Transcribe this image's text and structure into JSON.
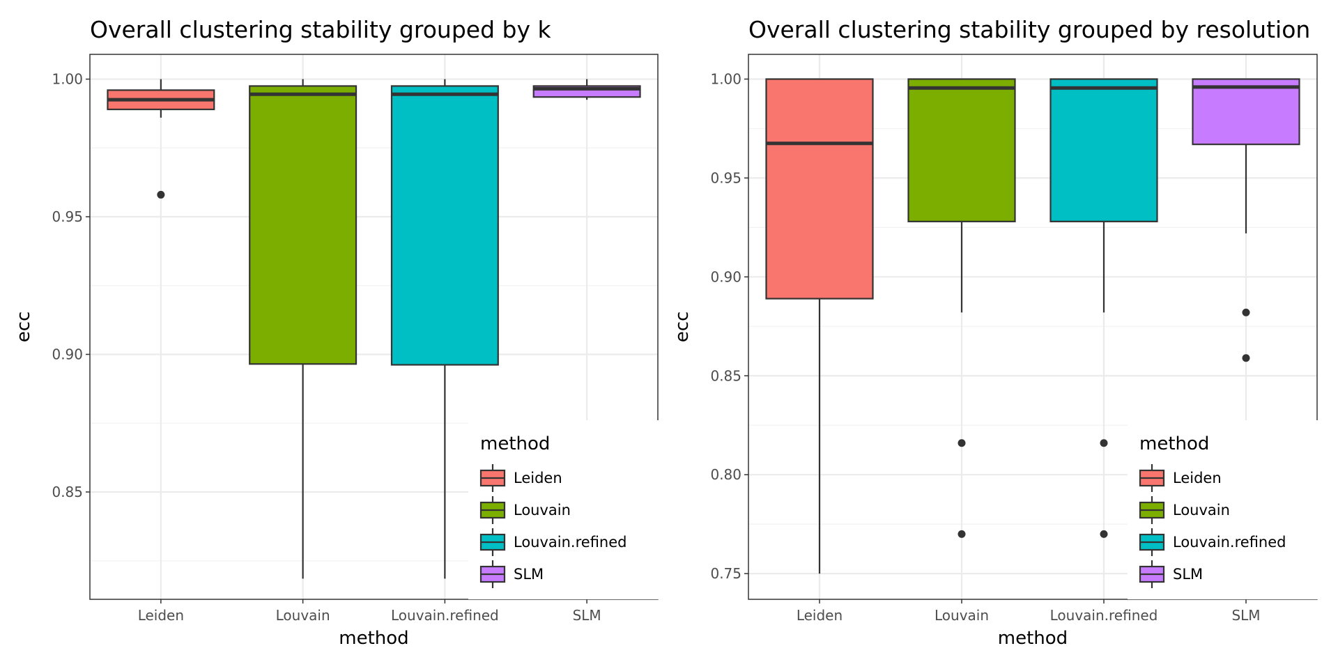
{
  "chart_data": [
    {
      "type": "box",
      "title": "Overall clustering stability grouped by k",
      "xlabel": "method",
      "ylabel": "ecc",
      "categories": [
        "Leiden",
        "Louvain",
        "Louvain.refined",
        "SLM"
      ],
      "ylim": [
        0.811,
        1.009
      ],
      "yticks": [
        0.85,
        0.9,
        0.95,
        1.0
      ],
      "ytick_labels": [
        "0.85",
        "0.90",
        "0.95",
        "1.00"
      ],
      "grid": true,
      "colors": [
        "#F8766D",
        "#7CAE00",
        "#00BFC4",
        "#C77CFF"
      ],
      "boxes": [
        {
          "name": "Leiden",
          "lower_whisker": 0.986,
          "q1": 0.989,
          "median": 0.9925,
          "q3": 0.996,
          "upper_whisker": 1.0,
          "outliers": [
            0.958
          ]
        },
        {
          "name": "Louvain",
          "lower_whisker": 0.8185,
          "q1": 0.8965,
          "median": 0.9945,
          "q3": 0.9975,
          "upper_whisker": 1.0,
          "outliers": []
        },
        {
          "name": "Louvain.refined",
          "lower_whisker": 0.8185,
          "q1": 0.8962,
          "median": 0.9945,
          "q3": 0.9975,
          "upper_whisker": 1.0,
          "outliers": []
        },
        {
          "name": "SLM",
          "lower_whisker": 0.9925,
          "q1": 0.9935,
          "median": 0.9965,
          "q3": 0.9975,
          "upper_whisker": 1.0,
          "outliers": []
        }
      ],
      "legend": {
        "title": "method",
        "position": "bottom-right",
        "entries": [
          "Leiden",
          "Louvain",
          "Louvain.refined",
          "SLM"
        ]
      }
    },
    {
      "type": "box",
      "title": "Overall clustering stability grouped by resolution",
      "xlabel": "method",
      "ylabel": "ecc",
      "categories": [
        "Leiden",
        "Louvain",
        "Louvain.refined",
        "SLM"
      ],
      "ylim": [
        0.737,
        1.0125
      ],
      "yticks": [
        0.75,
        0.8,
        0.85,
        0.9,
        0.95,
        1.0
      ],
      "ytick_labels": [
        "0.75",
        "0.80",
        "0.85",
        "0.90",
        "0.95",
        "1.00"
      ],
      "grid": true,
      "colors": [
        "#F8766D",
        "#7CAE00",
        "#00BFC4",
        "#C77CFF"
      ],
      "boxes": [
        {
          "name": "Leiden",
          "lower_whisker": 0.75,
          "q1": 0.889,
          "median": 0.9675,
          "q3": 1.0,
          "upper_whisker": 1.0,
          "outliers": []
        },
        {
          "name": "Louvain",
          "lower_whisker": 0.882,
          "q1": 0.928,
          "median": 0.9955,
          "q3": 1.0,
          "upper_whisker": 1.0,
          "outliers": [
            0.816,
            0.77
          ]
        },
        {
          "name": "Louvain.refined",
          "lower_whisker": 0.882,
          "q1": 0.928,
          "median": 0.9955,
          "q3": 1.0,
          "upper_whisker": 1.0,
          "outliers": [
            0.816,
            0.77
          ]
        },
        {
          "name": "SLM",
          "lower_whisker": 0.922,
          "q1": 0.967,
          "median": 0.996,
          "q3": 1.0,
          "upper_whisker": 1.0,
          "outliers": [
            0.882,
            0.859
          ]
        }
      ],
      "legend": {
        "title": "method",
        "position": "bottom-right",
        "entries": [
          "Leiden",
          "Louvain",
          "Louvain.refined",
          "SLM"
        ]
      }
    }
  ]
}
